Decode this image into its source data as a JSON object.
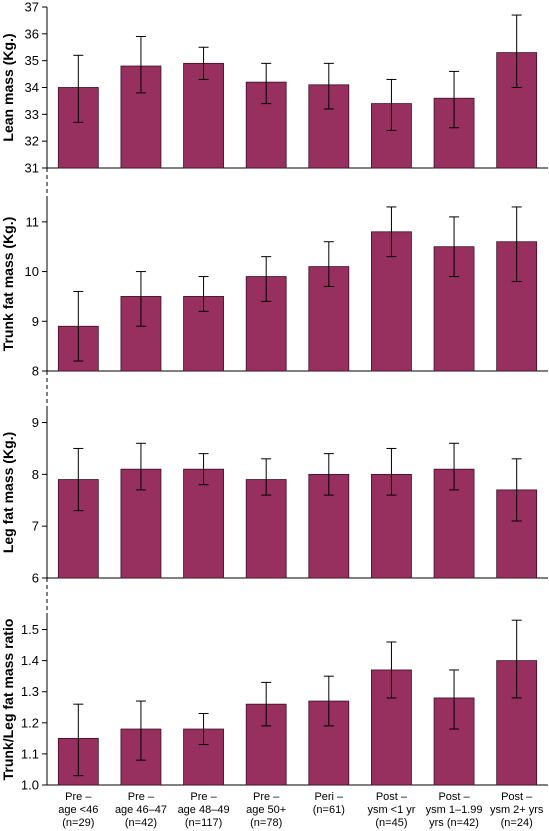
{
  "chart_data": [
    {
      "type": "bar",
      "ylabel": "Lean mass (Kg.)",
      "ylim": [
        31,
        37
      ],
      "yticks": [
        31,
        32,
        33,
        34,
        35,
        36,
        37
      ],
      "values": [
        34.0,
        34.8,
        34.9,
        34.2,
        34.1,
        33.4,
        33.6,
        35.3
      ],
      "error_upper": [
        35.2,
        35.9,
        35.5,
        34.9,
        34.9,
        34.3,
        34.6,
        36.7
      ],
      "error_lower": [
        32.7,
        33.8,
        34.3,
        33.4,
        33.2,
        32.4,
        32.5,
        34.0
      ],
      "axis_break": true
    },
    {
      "type": "bar",
      "ylabel": "Trunk fat mass (Kg.)",
      "ylim": [
        8,
        11.5
      ],
      "yticks": [
        8,
        9,
        10,
        11
      ],
      "values": [
        8.9,
        9.5,
        9.5,
        9.9,
        10.1,
        10.8,
        10.5,
        10.6
      ],
      "error_upper": [
        9.6,
        10.0,
        9.9,
        10.3,
        10.6,
        11.3,
        11.1,
        11.3
      ],
      "error_lower": [
        8.2,
        8.9,
        9.2,
        9.4,
        9.7,
        10.3,
        9.9,
        9.8
      ],
      "axis_break": true
    },
    {
      "type": "bar",
      "ylabel": "Leg fat mass (Kg.)",
      "ylim": [
        6,
        9.3
      ],
      "yticks": [
        6,
        7,
        8,
        9
      ],
      "values": [
        7.9,
        8.1,
        8.1,
        7.9,
        8.0,
        8.0,
        8.1,
        7.7
      ],
      "error_upper": [
        8.5,
        8.6,
        8.4,
        8.3,
        8.4,
        8.5,
        8.6,
        8.3
      ],
      "error_lower": [
        7.3,
        7.7,
        7.8,
        7.6,
        7.6,
        7.6,
        7.7,
        7.1
      ],
      "axis_break": true
    },
    {
      "type": "bar",
      "ylabel": "Trunk/Leg fat mass ratio",
      "ylim": [
        1.0,
        1.55
      ],
      "yticks": [
        "1.0",
        "1.1",
        "1.2",
        "1.3",
        "1.4",
        "1.5"
      ],
      "values": [
        1.15,
        1.18,
        1.18,
        1.26,
        1.27,
        1.37,
        1.28,
        1.4
      ],
      "error_upper": [
        1.26,
        1.27,
        1.23,
        1.33,
        1.35,
        1.46,
        1.37,
        1.53
      ],
      "error_lower": [
        1.03,
        1.08,
        1.13,
        1.19,
        1.19,
        1.28,
        1.18,
        1.28
      ],
      "axis_break": false
    }
  ],
  "categories": [
    [
      "Pre –",
      "age <46",
      "(n=29)"
    ],
    [
      "Pre –",
      "age 46–47",
      "(n=42)"
    ],
    [
      "Pre –",
      "age 48–49",
      "(n=117)"
    ],
    [
      "Pre –",
      "age 50+",
      "(n=78)"
    ],
    [
      "Peri –",
      "(n=61)"
    ],
    [
      "Post –",
      "ysm <1 yr",
      "(n=45)"
    ],
    [
      "Post –",
      "ysm 1–1.99",
      "yrs (n=42)"
    ],
    [
      "Post –",
      "ysm 2+ yrs",
      "(n=24)"
    ]
  ],
  "colors": {
    "bar_fill": "#97305F",
    "bar_stroke": "#3a0f24",
    "axis": "#000000"
  }
}
